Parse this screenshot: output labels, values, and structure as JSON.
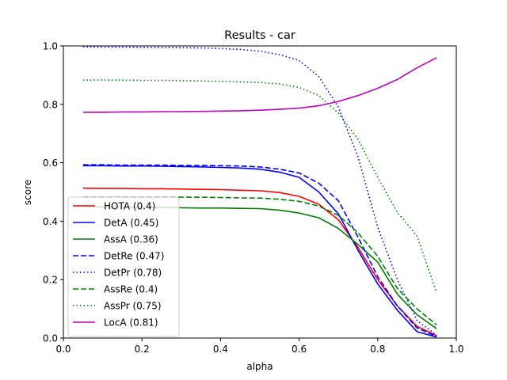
{
  "chart_data": {
    "type": "line",
    "title": "Results - car",
    "xlabel": "alpha",
    "ylabel": "score",
    "xlim": [
      0.0,
      1.0
    ],
    "ylim": [
      0.0,
      1.0
    ],
    "xticks": [
      "0.0",
      "0.2",
      "0.4",
      "0.6",
      "0.8",
      "1.0"
    ],
    "yticks": [
      "0.0",
      "0.2",
      "0.4",
      "0.6",
      "0.8",
      "1.0"
    ],
    "grid": false,
    "legend_position": "lower-left",
    "x": [
      0.05,
      0.1,
      0.15,
      0.2,
      0.25,
      0.3,
      0.35,
      0.4,
      0.45,
      0.5,
      0.55,
      0.6,
      0.65,
      0.7,
      0.75,
      0.8,
      0.85,
      0.9,
      0.95
    ],
    "series": [
      {
        "name": "HOTA (0.4)",
        "color": "#ff0000",
        "dash": "solid",
        "values": [
          0.513,
          0.512,
          0.512,
          0.511,
          0.511,
          0.51,
          0.509,
          0.508,
          0.506,
          0.504,
          0.498,
          0.485,
          0.458,
          0.405,
          0.31,
          0.2,
          0.11,
          0.04,
          0.008
        ]
      },
      {
        "name": "DetA (0.45)",
        "color": "#0000ff",
        "dash": "solid",
        "values": [
          0.59,
          0.59,
          0.589,
          0.589,
          0.588,
          0.587,
          0.586,
          0.584,
          0.582,
          0.578,
          0.568,
          0.55,
          0.5,
          0.425,
          0.3,
          0.185,
          0.095,
          0.022,
          0.003
        ]
      },
      {
        "name": "AssA (0.36)",
        "color": "#008000",
        "dash": "solid",
        "values": [
          0.45,
          0.449,
          0.449,
          0.448,
          0.447,
          0.446,
          0.445,
          0.445,
          0.444,
          0.443,
          0.438,
          0.428,
          0.412,
          0.375,
          0.32,
          0.26,
          0.15,
          0.08,
          0.032
        ]
      },
      {
        "name": "DetRe (0.47)",
        "color": "#0000ff",
        "dash": "dashed",
        "values": [
          0.593,
          0.593,
          0.592,
          0.592,
          0.592,
          0.591,
          0.591,
          0.59,
          0.589,
          0.586,
          0.578,
          0.565,
          0.53,
          0.47,
          0.345,
          0.21,
          0.11,
          0.035,
          0.005
        ]
      },
      {
        "name": "DetPr (0.78)",
        "color": "#0000ff",
        "dash": "dotted",
        "values": [
          0.997,
          0.996,
          0.996,
          0.995,
          0.995,
          0.994,
          0.993,
          0.991,
          0.988,
          0.982,
          0.97,
          0.95,
          0.895,
          0.79,
          0.62,
          0.38,
          0.2,
          0.06,
          0.01
        ]
      },
      {
        "name": "AssRe (0.4)",
        "color": "#008000",
        "dash": "dashed",
        "values": [
          0.482,
          0.482,
          0.482,
          0.482,
          0.482,
          0.482,
          0.482,
          0.481,
          0.48,
          0.479,
          0.475,
          0.468,
          0.452,
          0.42,
          0.36,
          0.28,
          0.17,
          0.1,
          0.045
        ]
      },
      {
        "name": "AssPr (0.75)",
        "color": "#008000",
        "dash": "dotted",
        "values": [
          0.883,
          0.883,
          0.883,
          0.882,
          0.882,
          0.881,
          0.88,
          0.878,
          0.877,
          0.875,
          0.87,
          0.858,
          0.83,
          0.77,
          0.68,
          0.55,
          0.43,
          0.35,
          0.155
        ]
      },
      {
        "name": "LocA (0.81)",
        "color": "#bf00bf",
        "dash": "solid",
        "values": [
          0.773,
          0.773,
          0.774,
          0.774,
          0.775,
          0.775,
          0.776,
          0.777,
          0.778,
          0.78,
          0.783,
          0.787,
          0.795,
          0.81,
          0.83,
          0.855,
          0.885,
          0.925,
          0.96
        ]
      }
    ]
  }
}
